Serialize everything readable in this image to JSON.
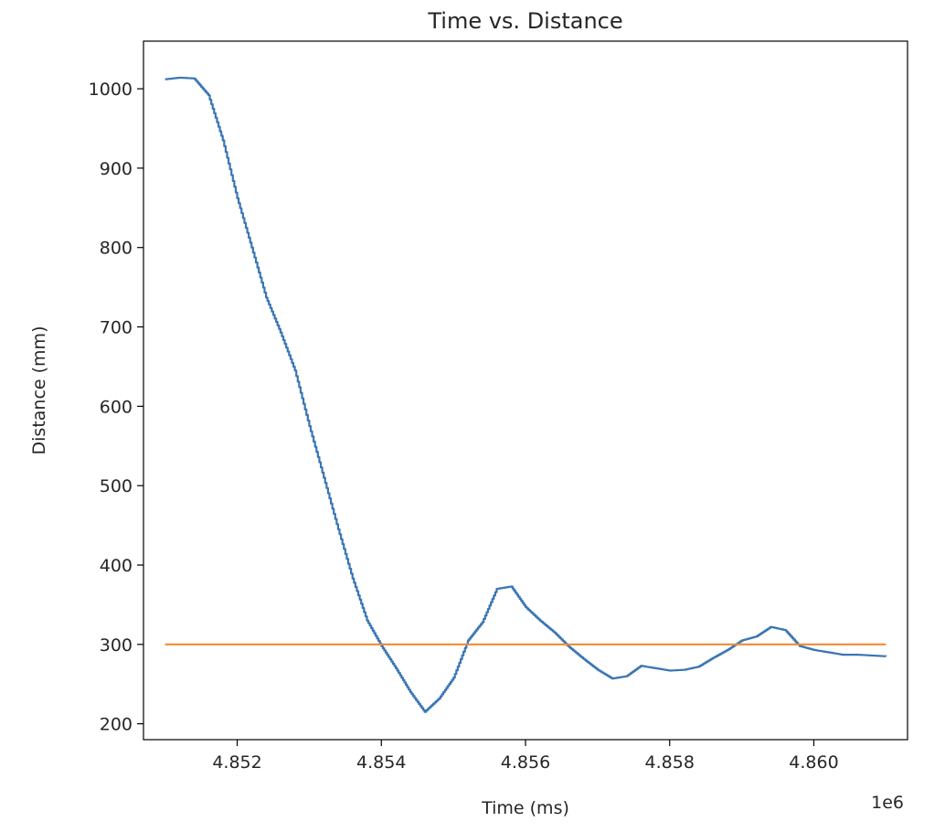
{
  "chart_data": {
    "type": "line",
    "title": "Time vs. Distance",
    "xlabel": "Time (ms)",
    "ylabel": "Distance (mm)",
    "x_offset_label": "1e6",
    "xlim": [
      4850700,
      4861300
    ],
    "ylim": [
      180,
      1060
    ],
    "x_ticks": [
      4852000,
      4854000,
      4856000,
      4858000,
      4860000
    ],
    "x_tick_labels": [
      "4.852",
      "4.854",
      "4.856",
      "4.858",
      "4.860"
    ],
    "y_ticks": [
      200,
      300,
      400,
      500,
      600,
      700,
      800,
      900,
      1000
    ],
    "y_tick_labels": [
      "200",
      "300",
      "400",
      "500",
      "600",
      "700",
      "800",
      "900",
      "1000"
    ],
    "grid": false,
    "series": [
      {
        "color": "#3a76b4",
        "step": true,
        "x": [
          4851000,
          4851200,
          4851400,
          4851600,
          4851800,
          4852000,
          4852200,
          4852400,
          4852600,
          4852800,
          4853000,
          4853200,
          4853400,
          4853600,
          4853800,
          4854000,
          4854200,
          4854400,
          4854600,
          4854800,
          4855000,
          4855200,
          4855400,
          4855600,
          4855800,
          4856000,
          4856200,
          4856400,
          4856600,
          4856800,
          4857000,
          4857200,
          4857400,
          4857600,
          4857800,
          4858000,
          4858200,
          4858400,
          4858600,
          4858800,
          4859000,
          4859200,
          4859400,
          4859600,
          4859800,
          4860000,
          4860200,
          4860400,
          4860600,
          4860800,
          4861000
        ],
        "values": [
          1012,
          1014,
          1013,
          992,
          935,
          862,
          800,
          737,
          693,
          645,
          575,
          510,
          445,
          383,
          330,
          298,
          270,
          240,
          215,
          232,
          258,
          305,
          328,
          370,
          373,
          347,
          330,
          315,
          297,
          282,
          268,
          257,
          260,
          273,
          270,
          267,
          268,
          272,
          283,
          293,
          305,
          310,
          322,
          318,
          298,
          293,
          290,
          287,
          287,
          286,
          285
        ]
      },
      {
        "color": "#f08b34",
        "step": false,
        "x": [
          4851000,
          4861000
        ],
        "values": [
          300,
          300
        ]
      }
    ]
  }
}
